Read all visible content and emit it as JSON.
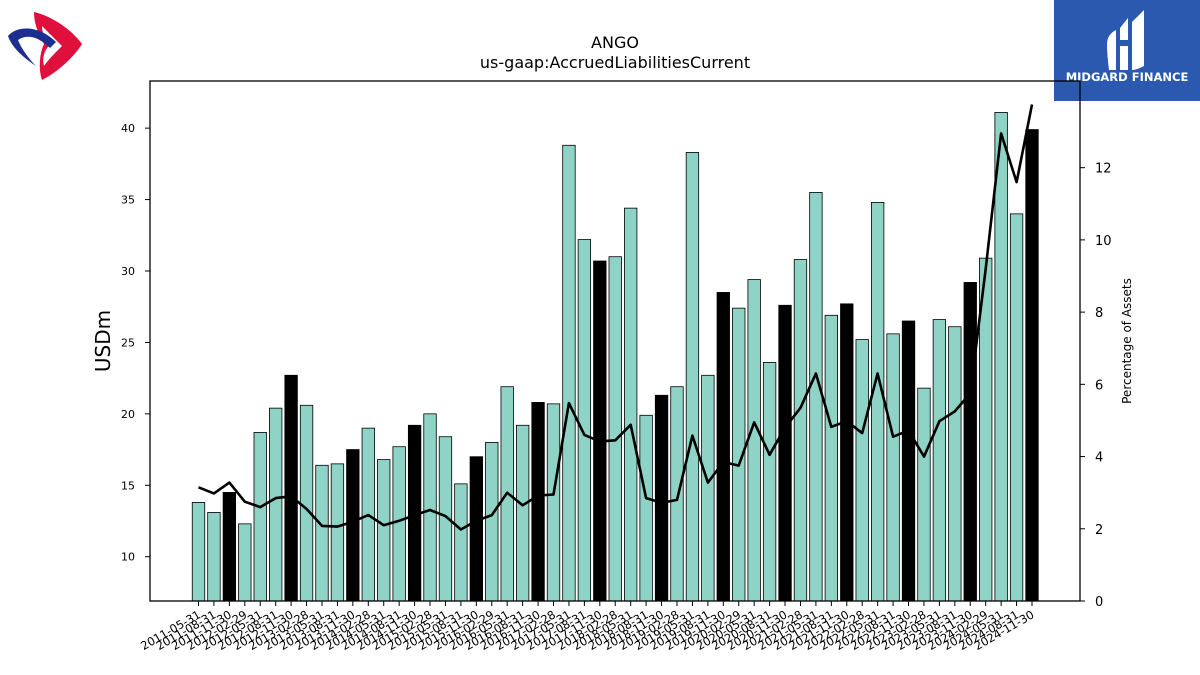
{
  "brand": {
    "name": "MIDGARD FINANCE",
    "panel_color": "#2b59b0",
    "left_logo_colors": [
      "#e0103c",
      "#1c2f8f"
    ]
  },
  "chart_data": {
    "type": "bar",
    "title": "ANGO",
    "subtitle": "us-gaap:AccruedLiabilitiesCurrent",
    "ylabel": "USDm",
    "y2label": "Percentage of Assets",
    "ylim": [
      6.9,
      43.3
    ],
    "y2lim": [
      0,
      14.4
    ],
    "yticks": [
      10,
      15,
      20,
      25,
      30,
      35,
      40
    ],
    "y2ticks": [
      0,
      2,
      4,
      6,
      8,
      10,
      12
    ],
    "bar_color": "#8fd3c6",
    "highlight_color": "#000000",
    "line_color": "#000000",
    "categories": [
      "2011-05-31",
      "2011-08-31",
      "2011-11-30",
      "2012-02-29",
      "2012-05-31",
      "2012-08-31",
      "2012-11-30",
      "2013-02-28",
      "2013-05-31",
      "2013-08-31",
      "2013-11-30",
      "2014-02-28",
      "2014-05-31",
      "2014-08-31",
      "2014-11-30",
      "2015-02-28",
      "2015-05-31",
      "2015-08-31",
      "2015-11-30",
      "2016-02-29",
      "2016-05-31",
      "2016-08-31",
      "2016-11-30",
      "2017-02-28",
      "2017-05-31",
      "2017-08-31",
      "2017-11-30",
      "2018-02-28",
      "2018-05-31",
      "2018-08-31",
      "2018-11-30",
      "2019-02-28",
      "2019-05-31",
      "2019-08-31",
      "2019-11-30",
      "2020-02-29",
      "2020-05-31",
      "2020-08-31",
      "2020-11-30",
      "2021-02-28",
      "2021-05-31",
      "2021-08-31",
      "2021-11-30",
      "2022-02-28",
      "2022-05-31",
      "2022-08-31",
      "2022-11-30",
      "2023-02-28",
      "2023-05-31",
      "2023-08-31",
      "2023-11-30",
      "2024-02-29",
      "2024-05-31",
      "2024-08-31",
      "2024-11-30"
    ],
    "values": [
      13.8,
      13.1,
      14.5,
      12.3,
      18.7,
      20.4,
      22.7,
      20.6,
      16.4,
      16.5,
      17.5,
      19.0,
      16.8,
      17.7,
      19.2,
      20.0,
      18.4,
      15.1,
      17.0,
      18.0,
      21.9,
      19.2,
      20.8,
      20.7,
      38.8,
      32.2,
      30.7,
      31.0,
      34.4,
      19.9,
      21.3,
      21.9,
      38.3,
      22.7,
      28.5,
      27.4,
      29.4,
      23.6,
      27.6,
      30.8,
      35.5,
      26.9,
      27.7,
      25.2,
      34.8,
      25.6,
      26.5,
      21.8,
      26.6,
      26.1,
      29.2,
      30.9,
      41.1,
      34.0,
      39.9
    ],
    "highlighted": [
      "2011-11-30",
      "2012-11-30",
      "2013-11-30",
      "2014-11-30",
      "2015-11-30",
      "2016-11-30",
      "2017-11-30",
      "2018-11-30",
      "2019-11-30",
      "2020-11-30",
      "2021-11-30",
      "2022-11-30",
      "2023-11-30",
      "2024-11-30"
    ],
    "series": [
      {
        "name": "",
        "axis": "y2",
        "type": "line",
        "values": [
          3.15,
          2.98,
          3.28,
          2.75,
          2.6,
          2.85,
          2.9,
          2.55,
          2.08,
          2.06,
          2.2,
          2.38,
          2.1,
          2.22,
          2.38,
          2.52,
          2.35,
          1.98,
          2.22,
          2.38,
          3.0,
          2.65,
          2.92,
          2.95,
          5.48,
          4.6,
          4.42,
          4.45,
          4.88,
          2.85,
          2.72,
          2.8,
          4.58,
          3.28,
          3.85,
          3.75,
          4.95,
          4.05,
          4.8,
          5.35,
          6.3,
          4.82,
          4.98,
          4.65,
          6.3,
          4.55,
          4.72,
          4.0,
          4.98,
          5.25,
          5.75,
          9.2,
          12.95,
          11.6,
          13.75
        ]
      }
    ],
    "grid": false,
    "legend": "none"
  }
}
